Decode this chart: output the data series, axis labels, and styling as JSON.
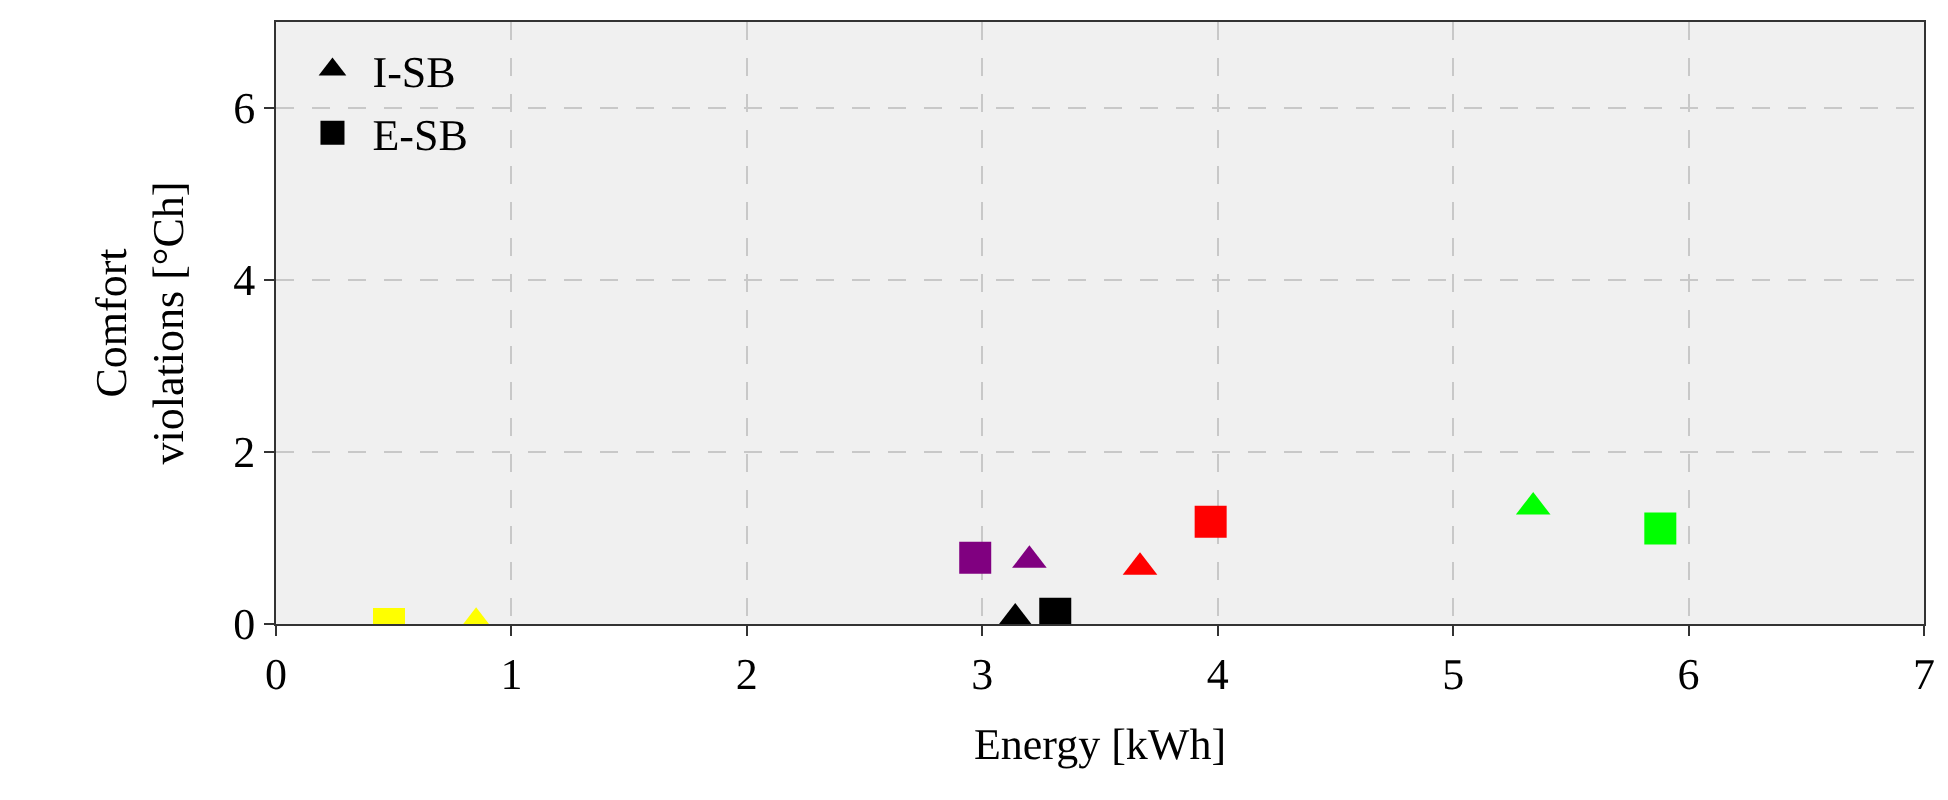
{
  "chart_data": {
    "type": "scatter",
    "xlabel": "Energy [kWh]",
    "ylabel": "Comfort\nviolations [°Ch]",
    "xlim": [
      0,
      7
    ],
    "ylim": [
      0,
      7
    ],
    "xticks": [
      0,
      1,
      2,
      3,
      4,
      5,
      6,
      7
    ],
    "yticks": [
      0,
      2,
      4,
      6
    ],
    "grid": true,
    "legend": "top left",
    "series": [
      {
        "name": "I-SB",
        "marker": "triangle",
        "color": "#000000",
        "x": [
          0.85,
          3.2,
          3.14,
          3.67,
          5.34
        ],
        "values": [
          0.02,
          0.74,
          0.07,
          0.66,
          1.36
        ],
        "colors": [
          "#ffff00",
          "#800080",
          "#000000",
          "#ff0000",
          "#00ff00"
        ]
      },
      {
        "name": "E-SB",
        "marker": "square",
        "color": "#000000",
        "x": [
          0.48,
          2.97,
          3.31,
          3.97,
          5.88
        ],
        "values": [
          0.0,
          0.77,
          0.12,
          1.19,
          1.11
        ],
        "colors": [
          "#ffff00",
          "#800080",
          "#000000",
          "#ff0000",
          "#00ff00"
        ]
      }
    ]
  }
}
